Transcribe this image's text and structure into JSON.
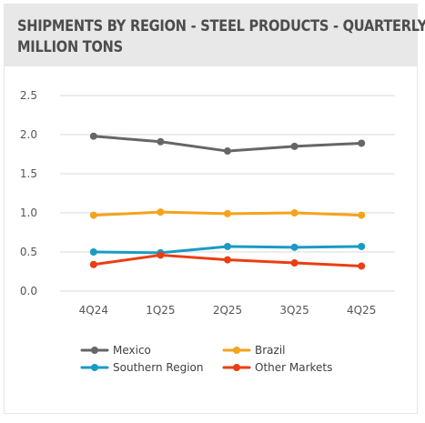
{
  "header": {
    "title_line1": "SHIPMENTS BY REGION - STEEL PRODUCTS - QUARTERLY",
    "title_line2": "MILLION TONS"
  },
  "chart_data": {
    "type": "line",
    "title": "SHIPMENTS BY REGION - STEEL PRODUCTS - QUARTERLY MILLION TONS",
    "xlabel": "",
    "ylabel": "",
    "categories": [
      "4Q24",
      "1Q25",
      "2Q25",
      "3Q25",
      "4Q25"
    ],
    "ylim": [
      0,
      2.5
    ],
    "yticks": [
      "0.0",
      "0.5",
      "1.0",
      "1.5",
      "2.0",
      "2.5"
    ],
    "grid": true,
    "legend_position": "bottom",
    "series": [
      {
        "name": "Mexico",
        "color": "#666666",
        "values": [
          1.98,
          1.91,
          1.79,
          1.85,
          1.89
        ]
      },
      {
        "name": "Brazil",
        "color": "#f4a31b",
        "values": [
          0.97,
          1.01,
          0.99,
          1.0,
          0.97
        ]
      },
      {
        "name": "Southern Region",
        "color": "#1a9bc3",
        "values": [
          0.5,
          0.49,
          0.57,
          0.56,
          0.57
        ]
      },
      {
        "name": "Other Markets",
        "color": "#ea3e13",
        "values": [
          0.34,
          0.46,
          0.4,
          0.36,
          0.32
        ]
      }
    ]
  }
}
